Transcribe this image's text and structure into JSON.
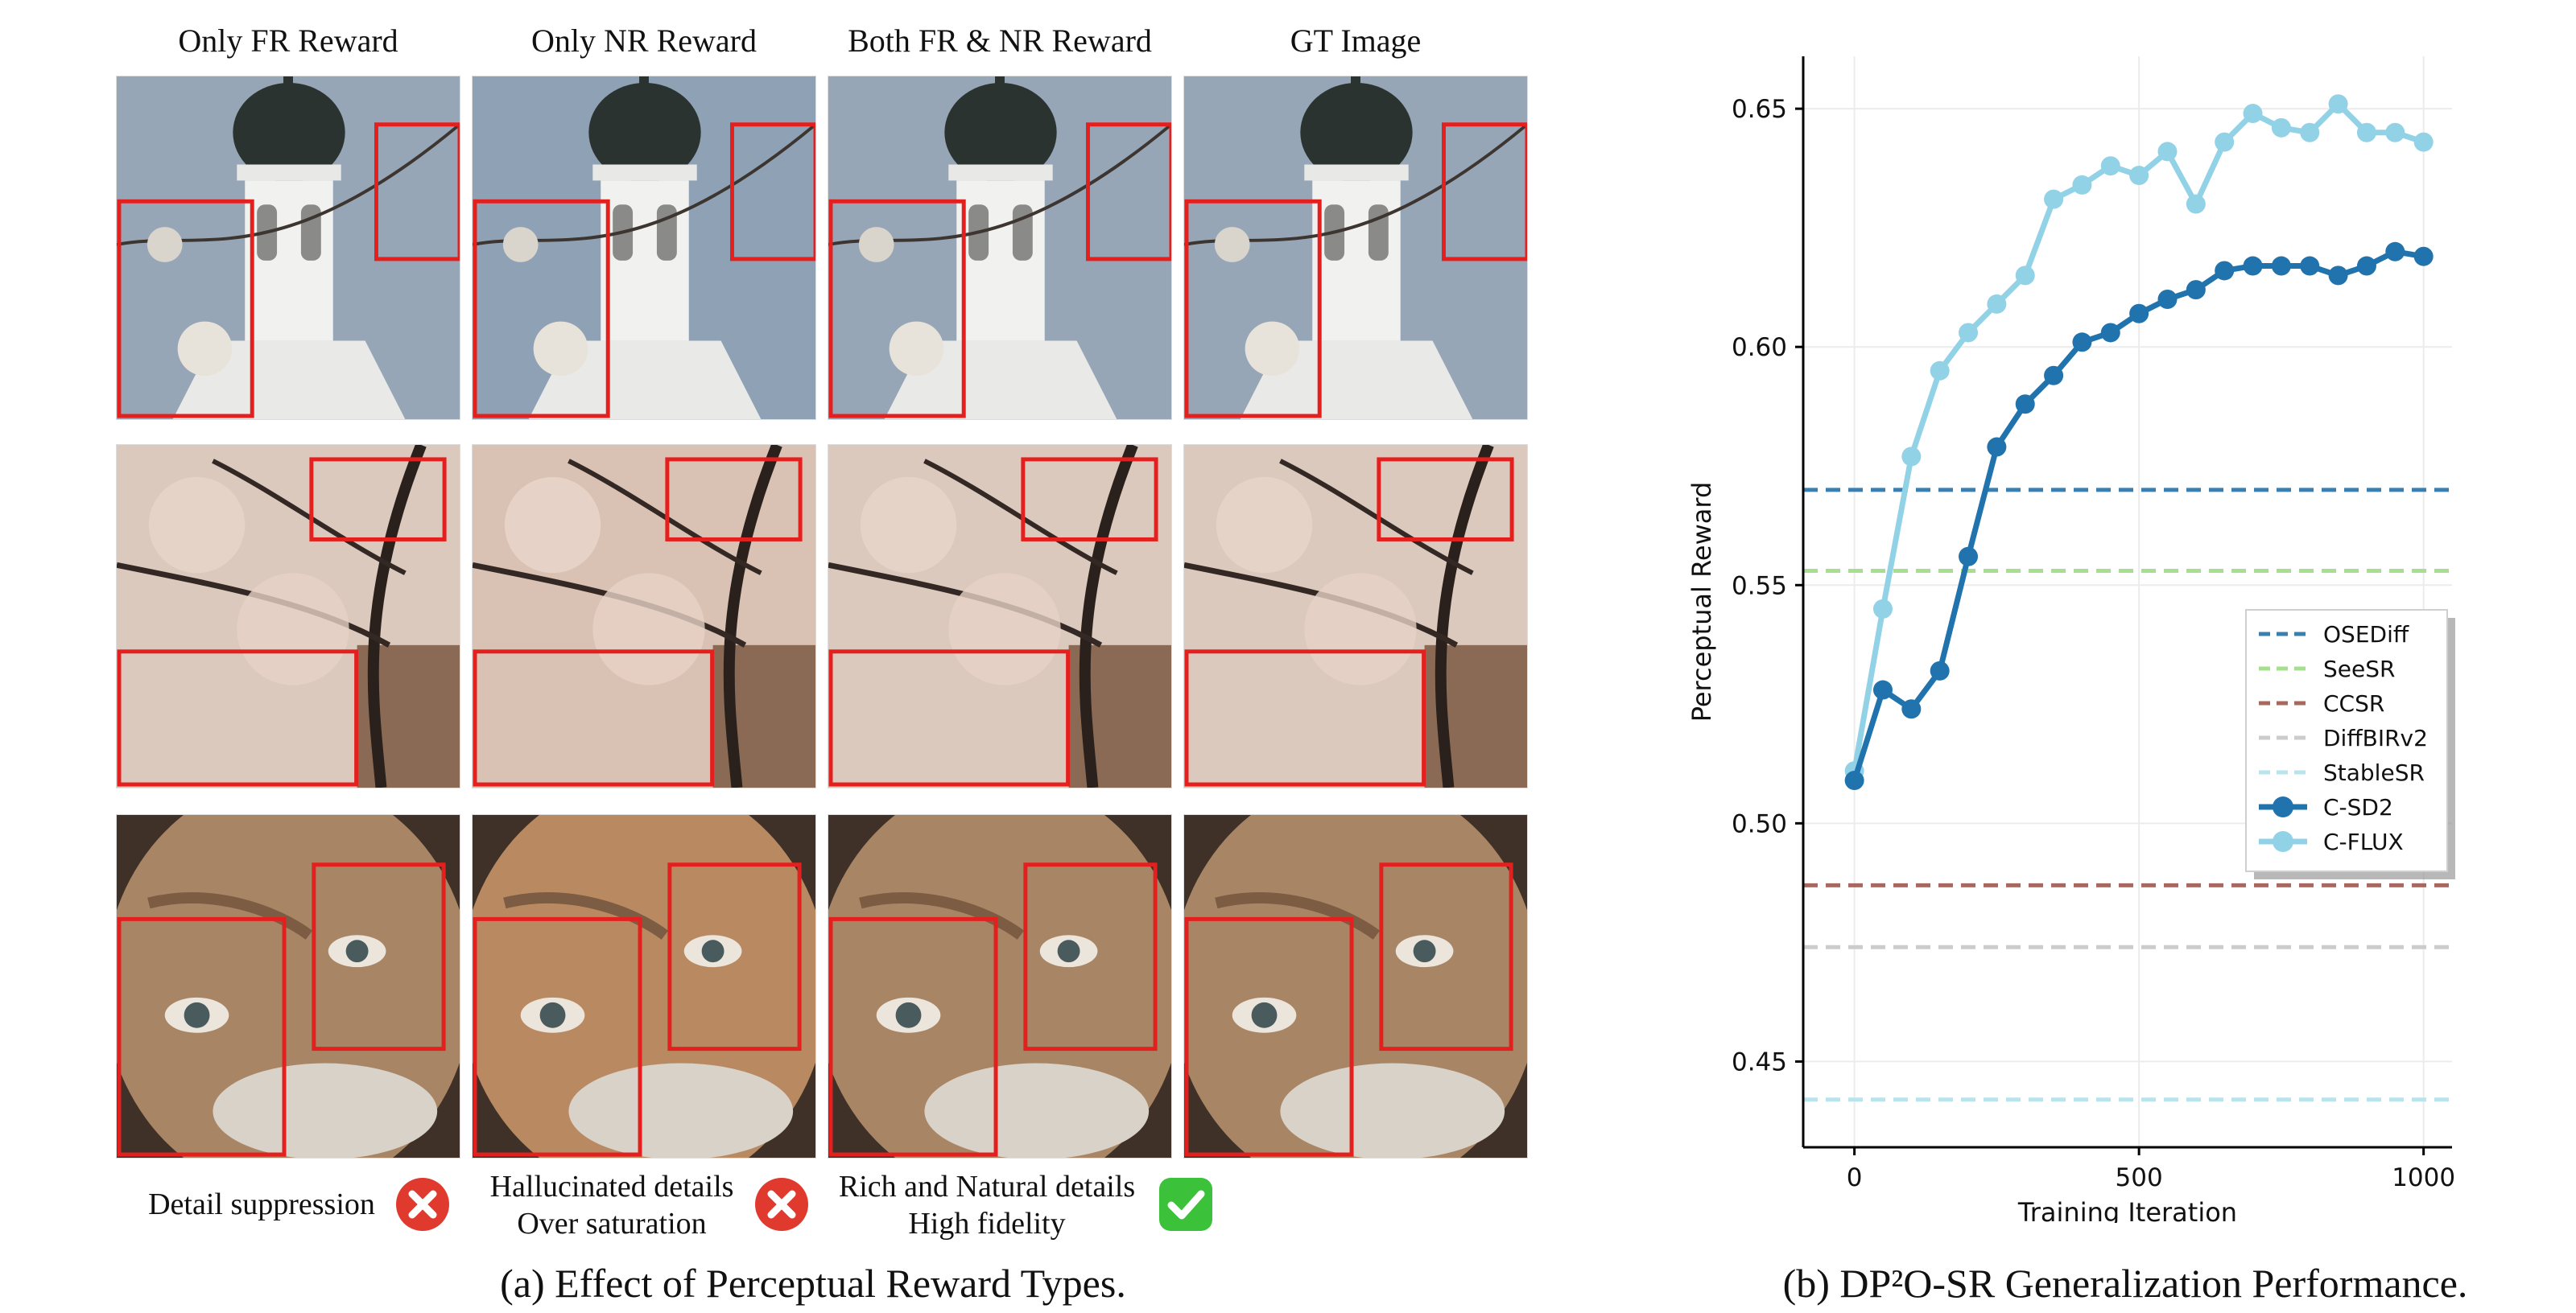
{
  "panel_a": {
    "column_headers": [
      "Only FR Reward",
      "Only NR Reward",
      "Both FR & NR Reward",
      "GT Image"
    ],
    "row_subjects": [
      "church steeple with branch",
      "cherry blossom tree",
      "elderly man face close-up"
    ],
    "captions": [
      {
        "line1": "Detail suppression",
        "line2": "",
        "status_icon": "red-x-icon"
      },
      {
        "line1": "Hallucinated details",
        "line2": "Over saturation",
        "status_icon": "red-x-icon"
      },
      {
        "line1": "Rich and Natural details",
        "line2": "High fidelity",
        "status_icon": "green-check-icon"
      }
    ],
    "subcaption": "(a) Effect of Perceptual Reward Types."
  },
  "panel_b": {
    "subcaption": "(b) DP²O-SR Generalization Performance."
  },
  "chart_data": {
    "type": "line",
    "xlabel": "Training Iteration",
    "ylabel": "Perceptual Reward",
    "xlim": [
      -90,
      1050
    ],
    "ylim": [
      0.432,
      0.661
    ],
    "xticks": [
      0,
      500,
      1000
    ],
    "yticks": [
      0.45,
      0.5,
      0.55,
      0.6,
      0.65
    ],
    "ytick_labels": [
      "0.45",
      "0.50",
      "0.55",
      "0.60",
      "0.65"
    ],
    "grid": true,
    "legend_position": "center-right",
    "baselines": [
      {
        "name": "OSEDiff",
        "value": 0.57,
        "color": "#3b7fb0"
      },
      {
        "name": "SeeSR",
        "value": 0.553,
        "color": "#a6e08e"
      },
      {
        "name": "CCSR",
        "value": 0.487,
        "color": "#a8685f"
      },
      {
        "name": "DiffBIRv2",
        "value": 0.474,
        "color": "#cccccc"
      },
      {
        "name": "StableSR",
        "value": 0.442,
        "color": "#b9e4ee"
      }
    ],
    "series": [
      {
        "name": "C-SD2",
        "color": "#2073ad",
        "x": [
          0,
          50,
          100,
          150,
          200,
          250,
          300,
          350,
          400,
          450,
          500,
          550,
          600,
          650,
          700,
          750,
          800,
          850,
          900,
          950,
          1000
        ],
        "values": [
          0.509,
          0.528,
          0.524,
          0.532,
          0.556,
          0.579,
          0.588,
          0.594,
          0.601,
          0.603,
          0.607,
          0.61,
          0.612,
          0.616,
          0.617,
          0.617,
          0.617,
          0.615,
          0.617,
          0.62,
          0.619
        ]
      },
      {
        "name": "C-FLUX",
        "color": "#92d2e6",
        "x": [
          0,
          50,
          100,
          150,
          200,
          250,
          300,
          350,
          400,
          450,
          500,
          550,
          600,
          650,
          700,
          750,
          800,
          850,
          900,
          950,
          1000
        ],
        "values": [
          0.511,
          0.545,
          0.577,
          0.595,
          0.603,
          0.609,
          0.615,
          0.631,
          0.634,
          0.638,
          0.636,
          0.641,
          0.63,
          0.643,
          0.649,
          0.646,
          0.645,
          0.651,
          0.645,
          0.645,
          0.643
        ]
      }
    ]
  }
}
